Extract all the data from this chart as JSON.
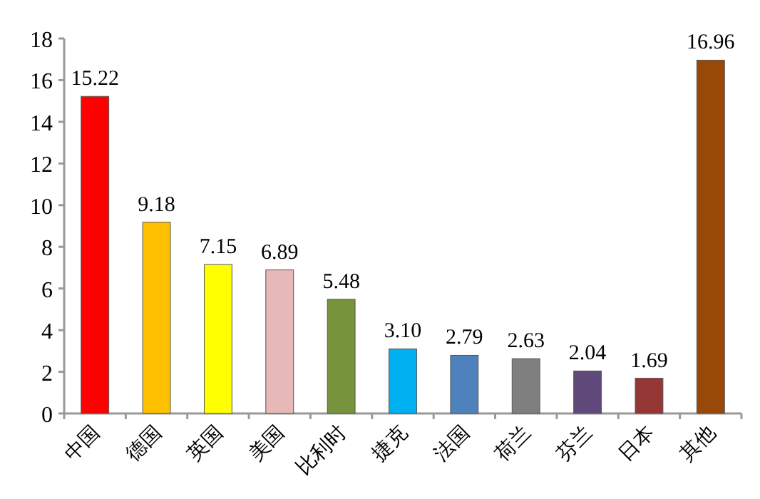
{
  "chart_data": {
    "type": "bar",
    "categories": [
      "中国",
      "德国",
      "英国",
      "美国",
      "比利时",
      "捷克",
      "法国",
      "荷兰",
      "芬兰",
      "日本",
      "其他"
    ],
    "values": [
      15.22,
      9.18,
      7.15,
      6.89,
      5.48,
      3.1,
      2.79,
      2.63,
      2.04,
      1.69,
      16.96
    ],
    "value_labels": [
      "15.22",
      "9.18",
      "7.15",
      "6.89",
      "5.48",
      "3.10",
      "2.79",
      "2.63",
      "2.04",
      "1.69",
      "16.96"
    ],
    "colors": [
      "#ff0000",
      "#ffc000",
      "#ffff00",
      "#e6b9b8",
      "#77933c",
      "#00b0f0",
      "#4f81bd",
      "#7f7f7f",
      "#604a7b",
      "#953735",
      "#984807"
    ],
    "ylim": [
      0,
      18
    ],
    "yticks": [
      0,
      2,
      4,
      6,
      8,
      10,
      12,
      14,
      16,
      18
    ]
  }
}
